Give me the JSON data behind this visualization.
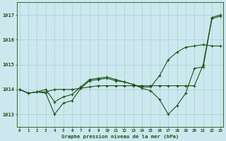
{
  "title": "Graphe pression niveau de la mer (hPa)",
  "hours": [
    0,
    1,
    2,
    3,
    4,
    5,
    6,
    7,
    8,
    9,
    10,
    11,
    12,
    13,
    14,
    15,
    16,
    17,
    18,
    19,
    20,
    21,
    22,
    23
  ],
  "ylim": [
    1012.5,
    1017.5
  ],
  "yticks": [
    1013,
    1014,
    1015,
    1016,
    1017
  ],
  "xlim": [
    -0.3,
    23.3
  ],
  "background_color": "#cce8ee",
  "grid_color": "#aacfd8",
  "line_color": "#1a5218",
  "line1": [
    1014.0,
    1013.85,
    1013.9,
    1013.85,
    1013.0,
    1013.45,
    1013.55,
    1014.05,
    1014.35,
    1014.4,
    1014.45,
    1014.35,
    1014.3,
    1014.2,
    1014.05,
    1013.95,
    1013.6,
    1013.0,
    1013.35,
    1013.85,
    1014.85,
    1014.9,
    1016.85,
    1016.95
  ],
  "line2": [
    1014.0,
    1013.85,
    1013.9,
    1013.9,
    1014.0,
    1014.0,
    1014.0,
    1014.05,
    1014.1,
    1014.15,
    1014.15,
    1014.15,
    1014.15,
    1014.15,
    1014.15,
    1014.15,
    1014.15,
    1014.15,
    1014.15,
    1014.15,
    1014.15,
    1015.0,
    1016.9,
    1017.0
  ],
  "line3": [
    1014.0,
    1013.85,
    1013.9,
    1014.0,
    1013.5,
    1013.7,
    1013.8,
    1014.1,
    1014.4,
    1014.45,
    1014.5,
    1014.4,
    1014.3,
    1014.2,
    1014.1,
    1014.1,
    1014.55,
    1015.2,
    1015.5,
    1015.7,
    1015.75,
    1015.8,
    1015.75,
    1015.75
  ]
}
